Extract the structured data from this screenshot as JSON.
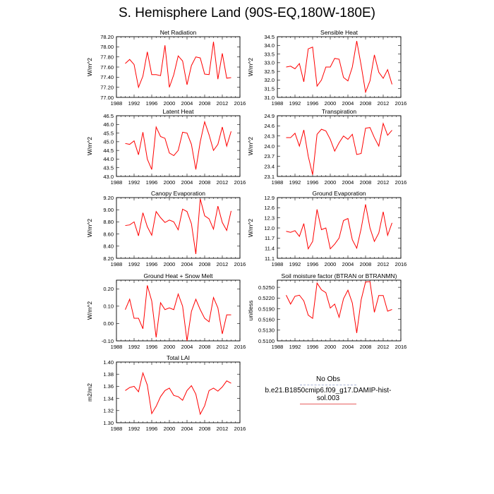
{
  "title": "S. Hemisphere Land (90S-EQ,180W-180E)",
  "legend": {
    "obs_label": "No Obs",
    "model_label": "b.e21.B1850cmip6.f09_g17.DAMIP-hist-sol.003",
    "obs_color": "#aab4d8",
    "model_color": "#e86060"
  },
  "series_color": "#ff0000",
  "chart_data": [
    {
      "type": "line",
      "title": "Net Radiation",
      "ylabel": "W/m^2",
      "xlim": [
        1988,
        2016
      ],
      "xticks": [
        1988,
        1992,
        1996,
        2000,
        2004,
        2008,
        2012,
        2016
      ],
      "ylim": [
        77.0,
        78.2
      ],
      "yticks": [
        77.0,
        77.2,
        77.4,
        77.6,
        77.8,
        78.0,
        78.2
      ],
      "ytick_labels": [
        "77.00",
        "77.20",
        "77.40",
        "77.60",
        "77.80",
        "78.00",
        "78.20"
      ],
      "x": [
        1990,
        1991,
        1992,
        1993,
        1994,
        1995,
        1996,
        1997,
        1998,
        1999,
        2000,
        2001,
        2002,
        2003,
        2004,
        2005,
        2006,
        2007,
        2008,
        2009,
        2010,
        2011,
        2012,
        2013,
        2014
      ],
      "y": [
        77.67,
        77.75,
        77.65,
        77.2,
        77.42,
        77.9,
        77.45,
        77.45,
        77.43,
        78.03,
        77.2,
        77.45,
        77.82,
        77.72,
        77.25,
        77.63,
        77.8,
        77.78,
        77.46,
        77.45,
        78.1,
        77.36,
        77.87,
        77.38,
        77.39
      ]
    },
    {
      "type": "line",
      "title": "Sensible Heat",
      "ylabel": "W/m^2",
      "xlim": [
        1988,
        2016
      ],
      "xticks": [
        1988,
        1992,
        1996,
        2000,
        2004,
        2008,
        2012,
        2016
      ],
      "ylim": [
        31.0,
        34.5
      ],
      "yticks": [
        31.0,
        31.5,
        32.0,
        32.5,
        33.0,
        33.5,
        34.0,
        34.5
      ],
      "ytick_labels": [
        "31.0",
        "31.5",
        "32.0",
        "32.5",
        "33.0",
        "33.5",
        "34.0",
        "34.5"
      ],
      "x": [
        1990,
        1991,
        1992,
        1993,
        1994,
        1995,
        1996,
        1997,
        1998,
        1999,
        2000,
        2001,
        2002,
        2003,
        2004,
        2005,
        2006,
        2007,
        2008,
        2009,
        2010,
        2011,
        2012,
        2013,
        2014
      ],
      "y": [
        32.75,
        32.8,
        32.65,
        32.95,
        31.9,
        33.8,
        33.9,
        31.65,
        32.0,
        32.75,
        32.75,
        33.25,
        33.2,
        32.15,
        31.95,
        32.75,
        34.25,
        32.85,
        31.3,
        31.95,
        33.45,
        32.45,
        32.1,
        32.6,
        31.75
      ]
    },
    {
      "type": "line",
      "title": "Latent Heat",
      "ylabel": "W/m^2",
      "xlim": [
        1988,
        2016
      ],
      "xticks": [
        1988,
        1992,
        1996,
        2000,
        2004,
        2008,
        2012,
        2016
      ],
      "ylim": [
        43.0,
        46.5
      ],
      "yticks": [
        43.0,
        43.5,
        44.0,
        44.5,
        45.0,
        45.5,
        46.0,
        46.5
      ],
      "ytick_labels": [
        "43.0",
        "43.5",
        "44.0",
        "44.5",
        "45.0",
        "45.5",
        "46.0",
        "46.5"
      ],
      "x": [
        1990,
        1991,
        1992,
        1993,
        1994,
        1995,
        1996,
        1997,
        1998,
        1999,
        2000,
        2001,
        2002,
        2003,
        2004,
        2005,
        2006,
        2007,
        2008,
        2009,
        2010,
        2011,
        2012,
        2013,
        2014
      ],
      "y": [
        44.9,
        44.85,
        45.05,
        44.25,
        45.55,
        44.0,
        43.4,
        45.85,
        45.3,
        45.2,
        44.35,
        44.2,
        44.5,
        45.55,
        45.5,
        44.85,
        43.4,
        45.0,
        46.15,
        45.4,
        44.5,
        44.85,
        45.85,
        44.75,
        45.6
      ]
    },
    {
      "type": "line",
      "title": "Transpiration",
      "ylabel": "W/m^2",
      "xlim": [
        1988,
        2016
      ],
      "xticks": [
        1988,
        1992,
        1996,
        2000,
        2004,
        2008,
        2012,
        2016
      ],
      "ylim": [
        23.1,
        24.9
      ],
      "yticks": [
        23.1,
        23.4,
        23.7,
        24.0,
        24.3,
        24.6,
        24.9
      ],
      "ytick_labels": [
        "23.1",
        "23.4",
        "23.7",
        "24.0",
        "24.3",
        "24.6",
        "24.9"
      ],
      "x": [
        1990,
        1991,
        1992,
        1993,
        1994,
        1995,
        1996,
        1997,
        1998,
        1999,
        2000,
        2001,
        2002,
        2003,
        2004,
        2005,
        2006,
        2007,
        2008,
        2009,
        2010,
        2011,
        2012,
        2013,
        2014
      ],
      "y": [
        24.25,
        24.25,
        24.38,
        24.0,
        24.48,
        23.7,
        23.15,
        24.35,
        24.5,
        24.45,
        24.2,
        23.85,
        24.1,
        24.3,
        24.2,
        24.35,
        23.75,
        23.78,
        24.53,
        24.55,
        24.25,
        24.0,
        24.67,
        24.32,
        24.47
      ]
    },
    {
      "type": "line",
      "title": "Canopy Evaporation",
      "ylabel": "W/m^2",
      "xlim": [
        1988,
        2016
      ],
      "xticks": [
        1988,
        1992,
        1996,
        2000,
        2004,
        2008,
        2012,
        2016
      ],
      "ylim": [
        8.2,
        9.2
      ],
      "yticks": [
        8.2,
        8.4,
        8.6,
        8.8,
        9.0,
        9.2
      ],
      "ytick_labels": [
        "8.20",
        "8.40",
        "8.60",
        "8.80",
        "9.00",
        "9.20"
      ],
      "x": [
        1990,
        1991,
        1992,
        1993,
        1994,
        1995,
        1996,
        1997,
        1998,
        1999,
        2000,
        2001,
        2002,
        2003,
        2004,
        2005,
        2006,
        2007,
        2008,
        2009,
        2010,
        2011,
        2012,
        2013,
        2014
      ],
      "y": [
        8.74,
        8.75,
        8.8,
        8.57,
        8.95,
        8.72,
        8.58,
        8.97,
        8.87,
        8.79,
        8.83,
        8.8,
        8.67,
        9.01,
        8.97,
        8.77,
        8.27,
        9.18,
        8.9,
        8.85,
        8.68,
        9.06,
        8.79,
        8.66,
        8.98
      ]
    },
    {
      "type": "line",
      "title": "Ground Evaporation",
      "ylabel": "W/m^2",
      "xlim": [
        1988,
        2016
      ],
      "xticks": [
        1988,
        1992,
        1996,
        2000,
        2004,
        2008,
        2012,
        2016
      ],
      "ylim": [
        11.1,
        12.9
      ],
      "yticks": [
        11.1,
        11.4,
        11.7,
        12.0,
        12.3,
        12.6,
        12.9
      ],
      "ytick_labels": [
        "11.1",
        "11.4",
        "11.7",
        "12.0",
        "12.3",
        "12.6",
        "12.9"
      ],
      "x": [
        1990,
        1991,
        1992,
        1993,
        1994,
        1995,
        1996,
        1997,
        1998,
        1999,
        2000,
        2001,
        2002,
        2003,
        2004,
        2005,
        2006,
        2007,
        2008,
        2009,
        2010,
        2011,
        2012,
        2013,
        2014
      ],
      "y": [
        11.9,
        11.87,
        11.92,
        11.75,
        12.13,
        11.38,
        11.6,
        12.55,
        11.95,
        12.0,
        11.38,
        11.52,
        11.7,
        12.22,
        12.28,
        11.65,
        11.4,
        11.98,
        12.7,
        12.0,
        11.6,
        11.85,
        12.48,
        11.78,
        12.15
      ]
    },
    {
      "type": "line",
      "title": "Ground Heat + Snow Melt",
      "ylabel": "W/m^2",
      "xlim": [
        1988,
        2016
      ],
      "xticks": [
        1988,
        1992,
        1996,
        2000,
        2004,
        2008,
        2012,
        2016
      ],
      "ylim": [
        -0.1,
        0.25
      ],
      "yticks": [
        -0.1,
        0.0,
        0.1,
        0.2
      ],
      "ytick_labels": [
        "-0.10",
        "0.00",
        "0.10",
        "0.20"
      ],
      "x": [
        1990,
        1991,
        1992,
        1993,
        1994,
        1995,
        1996,
        1997,
        1998,
        1999,
        2000,
        2001,
        2002,
        2003,
        2004,
        2005,
        2006,
        2007,
        2008,
        2009,
        2010,
        2011,
        2012,
        2013,
        2014
      ],
      "y": [
        0.08,
        0.14,
        0.03,
        0.03,
        -0.03,
        0.22,
        0.13,
        -0.08,
        0.12,
        0.08,
        0.09,
        0.08,
        0.17,
        0.1,
        -0.1,
        0.07,
        0.14,
        0.08,
        0.03,
        0.01,
        0.15,
        0.09,
        -0.06,
        0.05,
        0.05
      ]
    },
    {
      "type": "line",
      "title": "Soil moisture factor (BTRAN or BTRANMN)",
      "ylabel": "unitless",
      "xlim": [
        1988,
        2016
      ],
      "xticks": [
        1988,
        1992,
        1996,
        2000,
        2004,
        2008,
        2012,
        2016
      ],
      "ylim": [
        0.51,
        0.527
      ],
      "yticks": [
        0.51,
        0.513,
        0.516,
        0.519,
        0.522,
        0.525
      ],
      "ytick_labels": [
        "0.5100",
        "0.5130",
        "0.5160",
        "0.5190",
        "0.5220",
        "0.5250"
      ],
      "x": [
        1990,
        1991,
        1992,
        1993,
        1994,
        1995,
        1996,
        1997,
        1998,
        1999,
        2000,
        2001,
        2002,
        2003,
        2004,
        2005,
        2006,
        2007,
        2008,
        2009,
        2010,
        2011,
        2012,
        2013,
        2014
      ],
      "y": [
        0.5228,
        0.5203,
        0.5225,
        0.5228,
        0.5212,
        0.5172,
        0.5163,
        0.5262,
        0.5243,
        0.5235,
        0.5192,
        0.5203,
        0.5166,
        0.5218,
        0.5242,
        0.5206,
        0.5122,
        0.5215,
        0.5265,
        0.5266,
        0.518,
        0.5227,
        0.5227,
        0.5183,
        0.5188
      ]
    },
    {
      "type": "line",
      "title": "Total LAI",
      "ylabel": "m2/m2",
      "xlim": [
        1988,
        2016
      ],
      "xticks": [
        1988,
        1992,
        1996,
        2000,
        2004,
        2008,
        2012,
        2016
      ],
      "ylim": [
        1.3,
        1.4
      ],
      "yticks": [
        1.3,
        1.32,
        1.34,
        1.36,
        1.38,
        1.4
      ],
      "ytick_labels": [
        "1.30",
        "1.32",
        "1.34",
        "1.36",
        "1.38",
        "1.40"
      ],
      "x": [
        1990,
        1991,
        1992,
        1993,
        1994,
        1995,
        1996,
        1997,
        1998,
        1999,
        2000,
        2001,
        2002,
        2003,
        2004,
        2005,
        2006,
        2007,
        2008,
        2009,
        2010,
        2011,
        2012,
        2013,
        2014
      ],
      "y": [
        1.353,
        1.358,
        1.36,
        1.351,
        1.382,
        1.362,
        1.315,
        1.327,
        1.343,
        1.353,
        1.357,
        1.345,
        1.343,
        1.337,
        1.353,
        1.361,
        1.347,
        1.314,
        1.328,
        1.353,
        1.357,
        1.352,
        1.359,
        1.369,
        1.365
      ]
    }
  ]
}
